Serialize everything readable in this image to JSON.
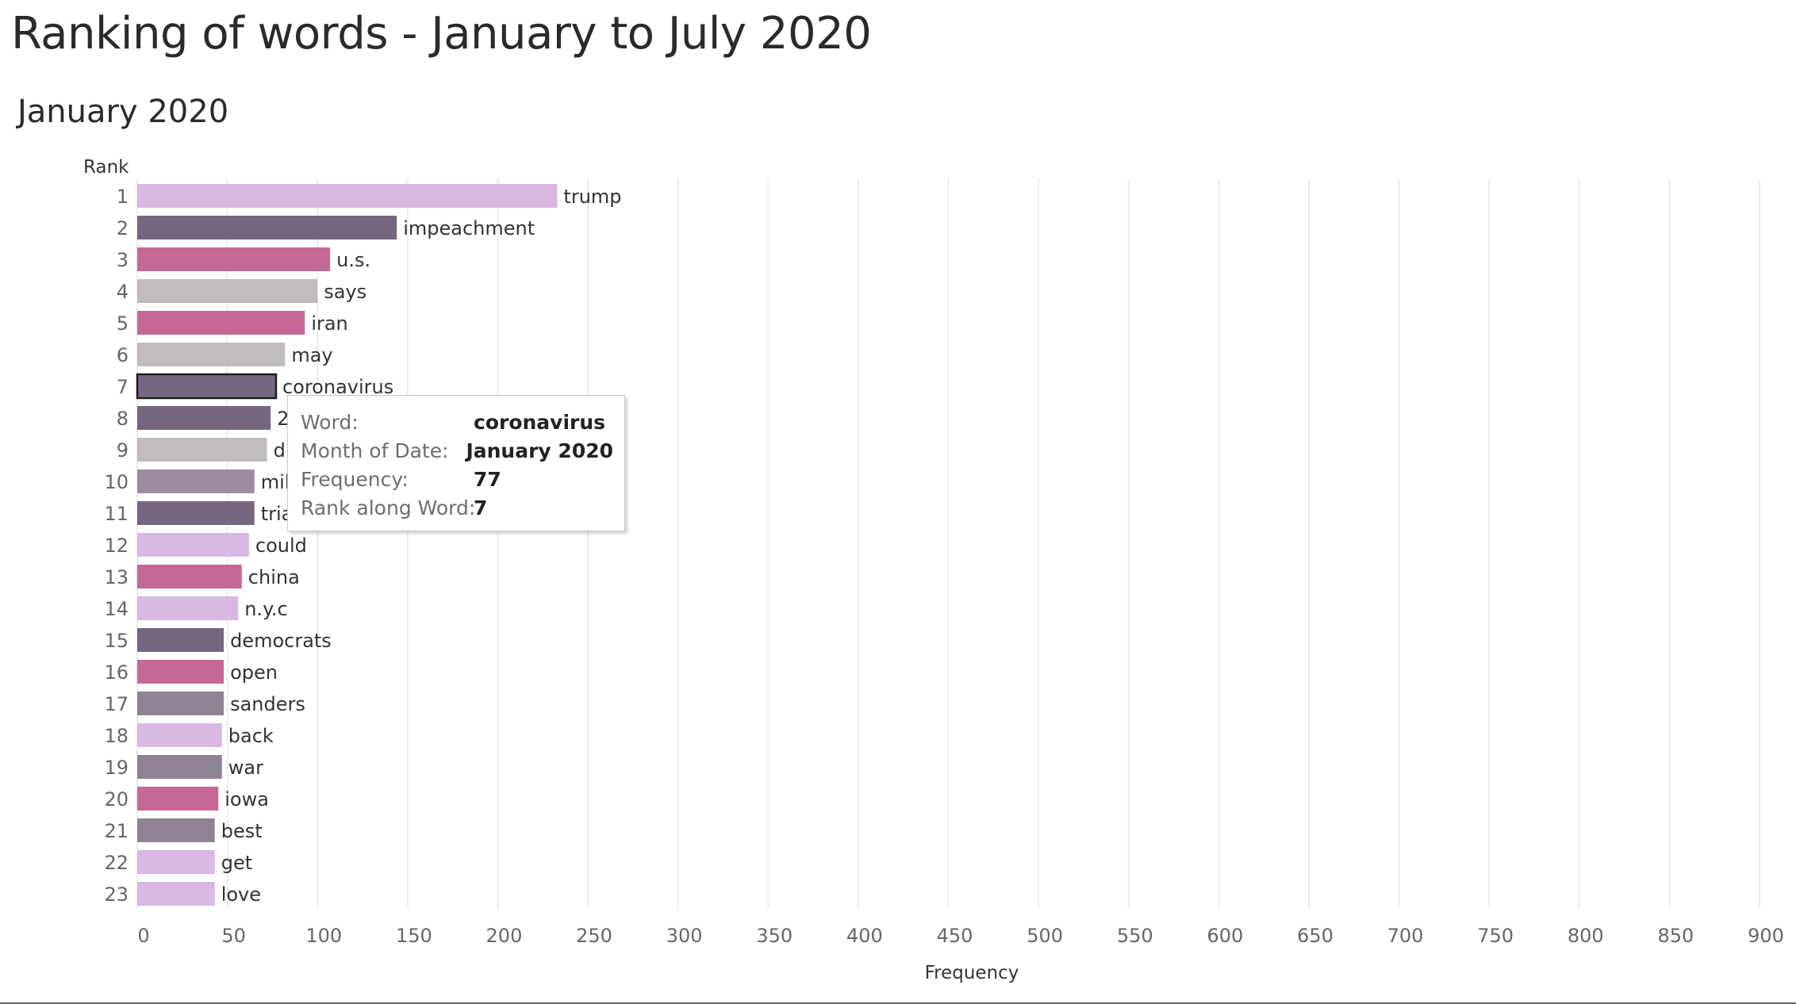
{
  "page": {
    "title": "Ranking of words - January to July 2020",
    "subtitle": "January 2020"
  },
  "chart_data": {
    "type": "bar",
    "orientation": "horizontal",
    "ylabel": "Rank",
    "xlabel": "Frequency",
    "xlim": [
      0,
      900
    ],
    "xticks": [
      0,
      50,
      100,
      150,
      200,
      250,
      300,
      350,
      400,
      450,
      500,
      550,
      600,
      650,
      700,
      750,
      800,
      850,
      900
    ],
    "grid": "vertical",
    "bars": [
      {
        "rank": 1,
        "word": "trump",
        "value": 233,
        "color": "#d9b8e2"
      },
      {
        "rank": 2,
        "word": "impeachment",
        "value": 144,
        "color": "#75677f"
      },
      {
        "rank": 3,
        "word": "u.s.",
        "value": 107,
        "color": "#c66896"
      },
      {
        "rank": 4,
        "word": "says",
        "value": 100,
        "color": "#c3bcbf"
      },
      {
        "rank": 5,
        "word": "iran",
        "value": 93,
        "color": "#c66896"
      },
      {
        "rank": 6,
        "word": "may",
        "value": 82,
        "color": "#c3bcbf"
      },
      {
        "rank": 7,
        "word": "coronavirus",
        "value": 77,
        "color": "#75677f"
      },
      {
        "rank": 8,
        "word": "2",
        "value": 74,
        "color": "#75677f"
      },
      {
        "rank": 9,
        "word": "d",
        "value": 72,
        "color": "#c3bcbf"
      },
      {
        "rank": 10,
        "word": "mil",
        "value": 65,
        "color": "#9d8ba2"
      },
      {
        "rank": 11,
        "word": "tria",
        "value": 65,
        "color": "#75677f"
      },
      {
        "rank": 12,
        "word": "could",
        "value": 62,
        "color": "#d9b8e2"
      },
      {
        "rank": 13,
        "word": "china",
        "value": 58,
        "color": "#c66896"
      },
      {
        "rank": 14,
        "word": "n.y.c",
        "value": 56,
        "color": "#d9b8e2"
      },
      {
        "rank": 15,
        "word": "democrats",
        "value": 48,
        "color": "#75677f"
      },
      {
        "rank": 16,
        "word": "open",
        "value": 48,
        "color": "#c66896"
      },
      {
        "rank": 17,
        "word": "sanders",
        "value": 48,
        "color": "#8e8393"
      },
      {
        "rank": 18,
        "word": "back",
        "value": 47,
        "color": "#d9b8e2"
      },
      {
        "rank": 19,
        "word": "war",
        "value": 47,
        "color": "#8e8393"
      },
      {
        "rank": 20,
        "word": "iowa",
        "value": 45,
        "color": "#c66896"
      },
      {
        "rank": 21,
        "word": "best",
        "value": 43,
        "color": "#8e8393"
      },
      {
        "rank": 22,
        "word": "get",
        "value": 43,
        "color": "#d9b8e2"
      },
      {
        "rank": 23,
        "word": "love",
        "value": 43,
        "color": "#d9b8e2"
      }
    ],
    "highlighted_rank": 7
  },
  "tooltip": {
    "rows": [
      {
        "key": "Word:",
        "value": "coronavirus"
      },
      {
        "key": "Month of Date:",
        "value": "January 2020"
      },
      {
        "key": "Frequency:",
        "value": "77"
      },
      {
        "key": "Rank along Word:",
        "value": "7"
      }
    ]
  }
}
